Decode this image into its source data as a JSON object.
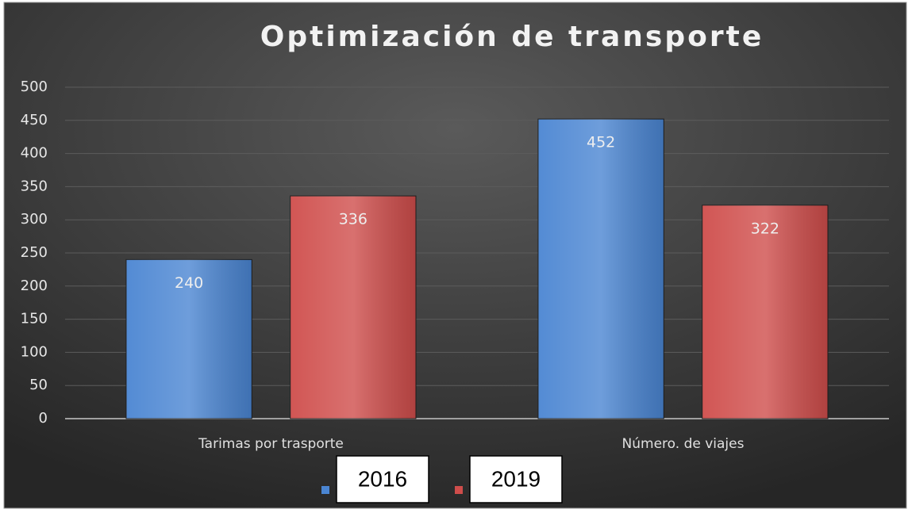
{
  "chart_data": {
    "type": "bar",
    "title": "Optimización de transporte",
    "categories": [
      "Tarimas por trasporte",
      "Número. de viajes"
    ],
    "series": [
      {
        "name": "2016",
        "color": "#4a85d2",
        "values": [
          240,
          452
        ]
      },
      {
        "name": "2019",
        "color": "#cf4d4b",
        "values": [
          336,
          322
        ]
      }
    ],
    "ylim": [
      0,
      500
    ],
    "yticks": [
      0,
      50,
      100,
      150,
      200,
      250,
      300,
      350,
      400,
      450,
      500
    ],
    "grid": true,
    "legend": "bottom"
  }
}
